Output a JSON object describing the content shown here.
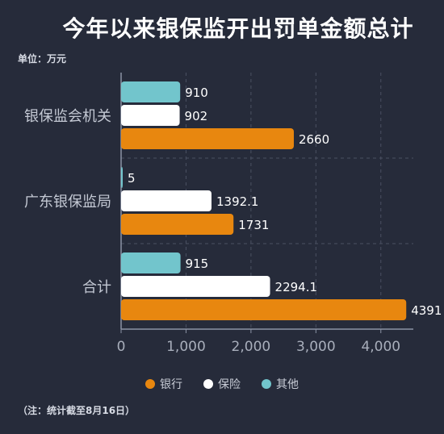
{
  "title": "今年以来银保监开出罚单金额总计",
  "unit_label": "单位：万元",
  "note": "（注：统计截至8月16日）",
  "colors": {
    "bank": "#e8870f",
    "insurance": "#ffffff",
    "other": "#72c5cc"
  },
  "chart_data": {
    "type": "bar",
    "orientation": "horizontal",
    "categories": [
      "银保监会机关",
      "广东银保监局",
      "合计"
    ],
    "series": [
      {
        "name": "其他",
        "values": [
          910,
          5,
          915
        ]
      },
      {
        "name": "保险",
        "values": [
          902,
          1392.1,
          2294.1
        ]
      },
      {
        "name": "银行",
        "values": [
          2660,
          1731,
          4391
        ]
      }
    ],
    "data_labels": [
      [
        "910",
        "5",
        "915"
      ],
      [
        "902",
        "1392.1",
        "2294.1"
      ],
      [
        "2660",
        "1731",
        "4391"
      ]
    ],
    "xlim": [
      0,
      4500
    ],
    "xticks": [
      0,
      1000,
      2000,
      3000,
      4000
    ],
    "xtick_labels": [
      "0",
      "1,000",
      "2,000",
      "3,000",
      "4,000"
    ],
    "grid": true,
    "legend_position": "bottom",
    "legend": [
      "银行",
      "保险",
      "其他"
    ]
  }
}
